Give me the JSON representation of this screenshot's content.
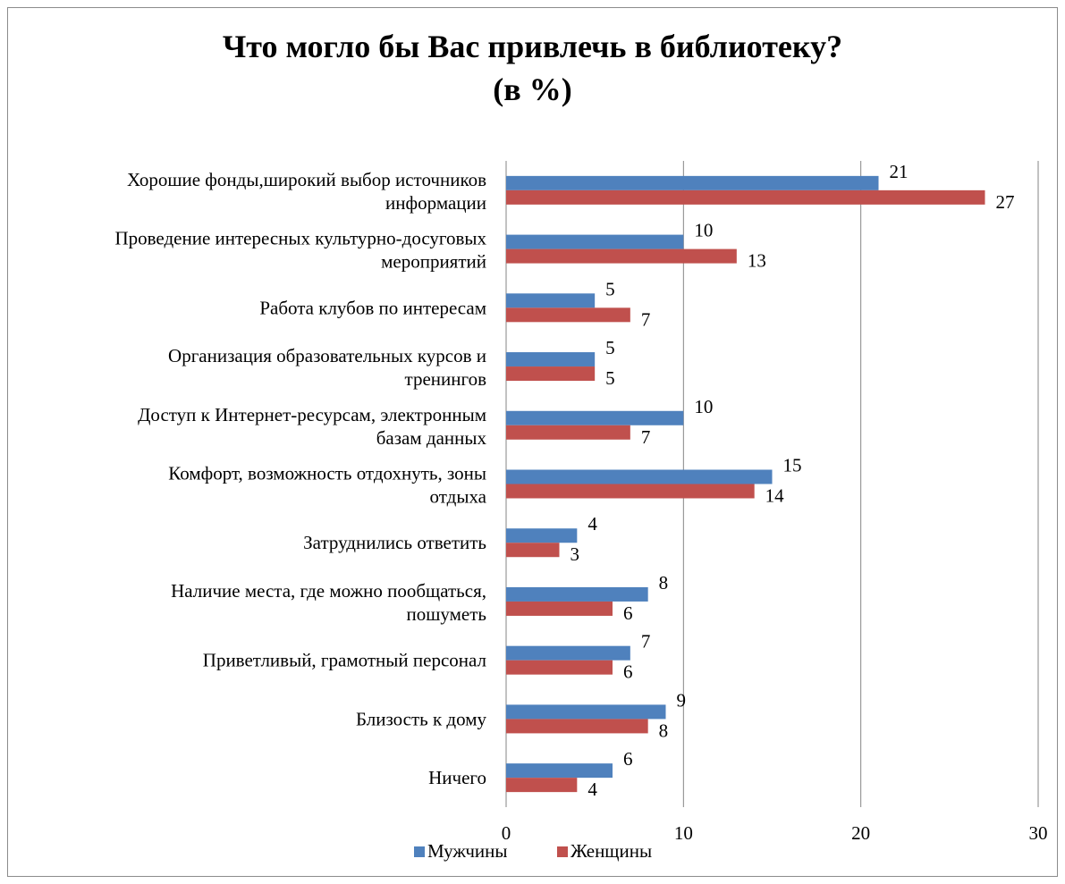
{
  "chart_data": {
    "type": "bar",
    "orientation": "horizontal",
    "title_line1": "Что могло бы Вас привлечь в библиотеку?",
    "title_line2": "(в %)",
    "categories": [
      [
        "Хорошие фонды,широкий выбор источников",
        "информации"
      ],
      [
        "Проведение интересных культурно-досуговых",
        "мероприятий"
      ],
      [
        "Работа клубов по интересам"
      ],
      [
        "Организация образовательных курсов и",
        "тренингов"
      ],
      [
        "Доступ к Интернет-ресурсам, электронным",
        "базам данных"
      ],
      [
        "Комфорт, возможность отдохнуть, зоны",
        "отдыха"
      ],
      [
        "Затруднились ответить"
      ],
      [
        "Наличие места, где можно пообщаться,",
        "пошуметь"
      ],
      [
        "Приветливый, грамотный персонал"
      ],
      [
        "Близость к дому"
      ],
      [
        "Ничего"
      ]
    ],
    "series": [
      {
        "name": "Мужчины",
        "color": "#4f81bd",
        "values": [
          21,
          10,
          5,
          5,
          10,
          15,
          4,
          8,
          7,
          9,
          6
        ]
      },
      {
        "name": "Женщины",
        "color": "#c0504d",
        "values": [
          27,
          13,
          7,
          5,
          7,
          14,
          3,
          6,
          6,
          8,
          4
        ]
      }
    ],
    "xlim": [
      0,
      30
    ],
    "xticks": [
      "0",
      "10",
      "20",
      "30"
    ],
    "grid": true,
    "legend_position": "bottom"
  }
}
